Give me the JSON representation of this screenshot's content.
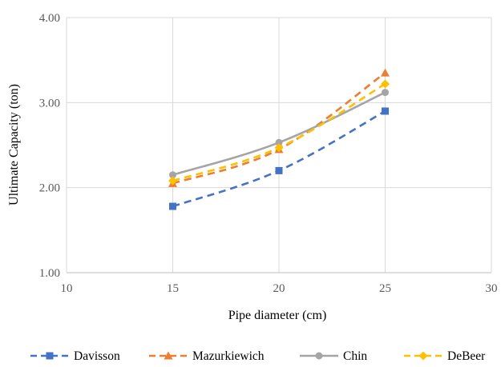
{
  "chart_data": {
    "type": "line",
    "title": "",
    "xlabel": "Pipe diameter (cm)",
    "ylabel": "Ultimate Capacity (ton)",
    "xlim": [
      10,
      30
    ],
    "ylim": [
      1.0,
      4.0
    ],
    "xticks": [
      "10",
      "15",
      "20",
      "25",
      "30"
    ],
    "yticks": [
      "1.00",
      "2.00",
      "3.00",
      "4.00"
    ],
    "grid": true,
    "legend_position": "bottom",
    "x": [
      15,
      20,
      25
    ],
    "series": [
      {
        "name": "Davisson",
        "values": [
          1.78,
          2.2,
          2.9
        ],
        "color": "#4472C4",
        "dash": "dashed",
        "marker": "square"
      },
      {
        "name": "Mazurkiewich",
        "values": [
          2.05,
          2.45,
          3.35
        ],
        "color": "#ED7D31",
        "dash": "dashed",
        "marker": "triangle"
      },
      {
        "name": "Chin",
        "values": [
          2.15,
          2.53,
          3.12
        ],
        "color": "#A5A5A5",
        "dash": "solid",
        "marker": "circle"
      },
      {
        "name": "DeBeer",
        "values": [
          2.08,
          2.47,
          3.22
        ],
        "color": "#FFC000",
        "dash": "dashed",
        "marker": "diamond"
      }
    ]
  }
}
